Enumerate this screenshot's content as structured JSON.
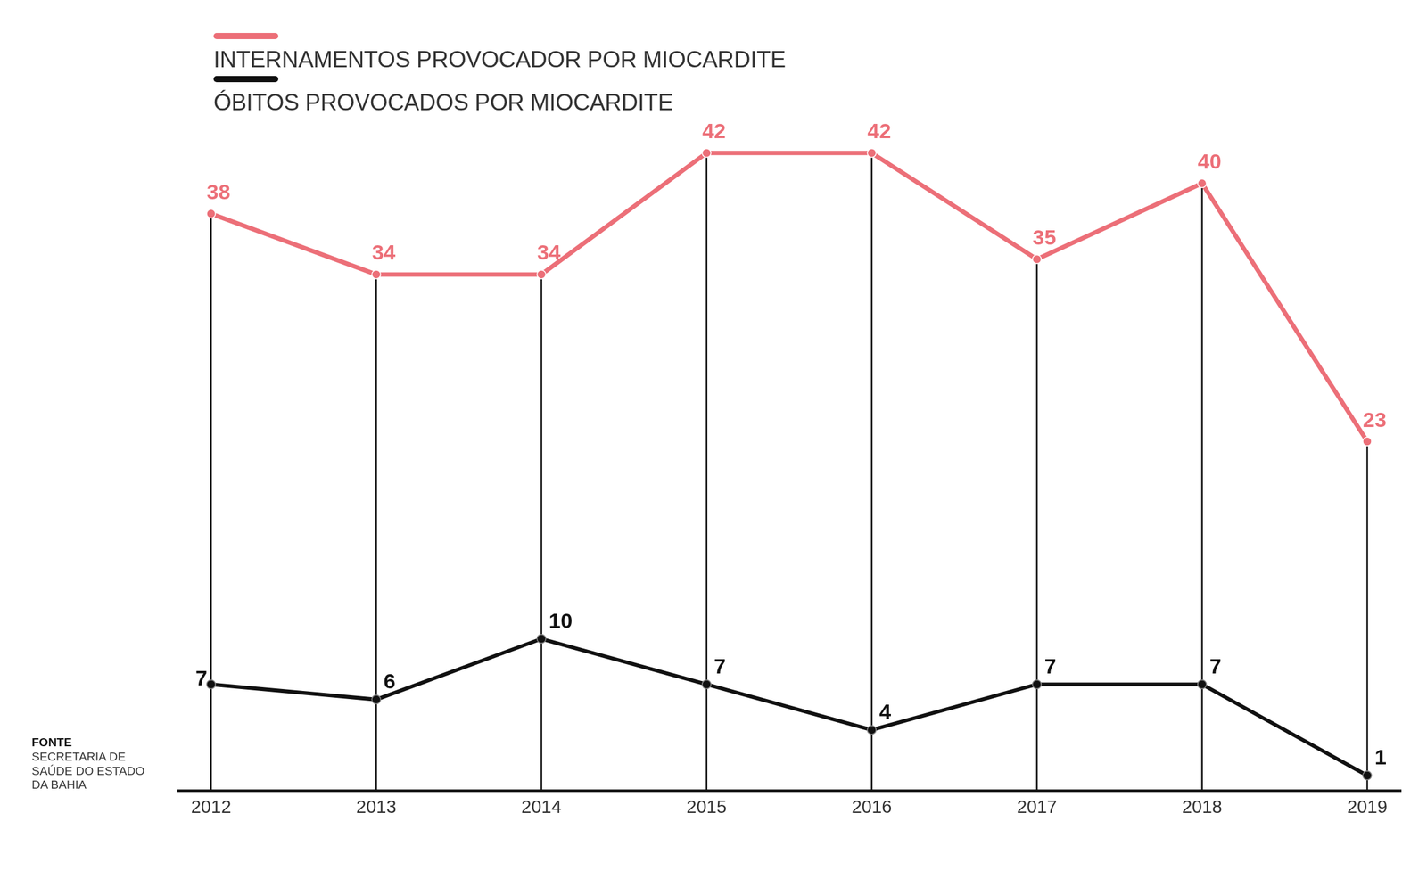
{
  "chart_data": {
    "type": "line",
    "categories": [
      "2012",
      "2013",
      "2014",
      "2015",
      "2016",
      "2017",
      "2018",
      "2019"
    ],
    "series": [
      {
        "name": "INTERNAMENTOS PROVOCADOR POR MIOCARDITE",
        "color": "#ec6f78",
        "values": [
          38,
          34,
          34,
          42,
          42,
          35,
          40,
          23
        ]
      },
      {
        "name": "ÓBITOS PROVOCADOS POR MIOCARDITE",
        "color": "#111111",
        "values": [
          7,
          6,
          10,
          7,
          4,
          7,
          7,
          1
        ]
      }
    ],
    "ylim": [
      0,
      44
    ],
    "tick_labels": "x",
    "grid": false,
    "data_labels": true,
    "legend": "top-left",
    "source": {
      "title": "FONTE",
      "text": [
        "SECRETARIA DE",
        "SAÚDE DO ESTADO",
        "DA BAHIA"
      ]
    }
  }
}
